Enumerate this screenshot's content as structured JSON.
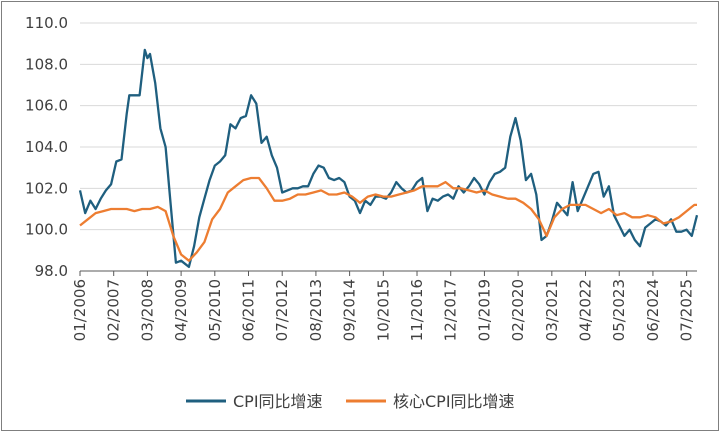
{
  "chart_data": {
    "type": "line",
    "ylim": [
      98.0,
      110.0
    ],
    "yticks": [
      98.0,
      100.0,
      102.0,
      104.0,
      106.0,
      108.0,
      110.0
    ],
    "ytick_labels": [
      "98.0",
      "100.0",
      "102.0",
      "104.0",
      "106.0",
      "108.0",
      "110.0"
    ],
    "xlim": [
      "2006-01",
      "2025-11"
    ],
    "xtick_labels": [
      "01/2006",
      "02/2007",
      "03/2008",
      "04/2009",
      "05/2010",
      "06/2011",
      "07/2012",
      "08/2013",
      "09/2014",
      "10/2015",
      "11/2016",
      "12/2017",
      "01/2019",
      "02/2020",
      "03/2021",
      "04/2022",
      "05/2023",
      "06/2024",
      "07/2025"
    ],
    "xtick_dates": [
      "2006-01",
      "2007-02",
      "2008-03",
      "2009-04",
      "2010-05",
      "2011-06",
      "2012-07",
      "2013-08",
      "2014-09",
      "2015-10",
      "2016-11",
      "2017-12",
      "2019-01",
      "2020-02",
      "2021-03",
      "2022-04",
      "2023-05",
      "2024-06",
      "2025-07"
    ],
    "grid": "horizontal",
    "legend_position": "bottom",
    "series": [
      {
        "name": "CPI同比增速",
        "color": "#1f5f7f",
        "points": [
          [
            "2006-01",
            101.9
          ],
          [
            "2006-03",
            100.8
          ],
          [
            "2006-05",
            101.4
          ],
          [
            "2006-07",
            101.0
          ],
          [
            "2006-09",
            101.5
          ],
          [
            "2006-11",
            101.9
          ],
          [
            "2007-01",
            102.2
          ],
          [
            "2007-03",
            103.3
          ],
          [
            "2007-05",
            103.4
          ],
          [
            "2007-07",
            105.6
          ],
          [
            "2007-08",
            106.5
          ],
          [
            "2007-10",
            106.5
          ],
          [
            "2007-12",
            106.5
          ],
          [
            "2008-02",
            108.7
          ],
          [
            "2008-03",
            108.3
          ],
          [
            "2008-04",
            108.5
          ],
          [
            "2008-06",
            107.1
          ],
          [
            "2008-08",
            104.9
          ],
          [
            "2008-10",
            104.0
          ],
          [
            "2008-12",
            101.2
          ],
          [
            "2009-02",
            98.4
          ],
          [
            "2009-04",
            98.5
          ],
          [
            "2009-06",
            98.3
          ],
          [
            "2009-07",
            98.2
          ],
          [
            "2009-09",
            99.2
          ],
          [
            "2009-11",
            100.6
          ],
          [
            "2010-01",
            101.5
          ],
          [
            "2010-03",
            102.4
          ],
          [
            "2010-05",
            103.1
          ],
          [
            "2010-07",
            103.3
          ],
          [
            "2010-09",
            103.6
          ],
          [
            "2010-11",
            105.1
          ],
          [
            "2011-01",
            104.9
          ],
          [
            "2011-03",
            105.4
          ],
          [
            "2011-05",
            105.5
          ],
          [
            "2011-07",
            106.5
          ],
          [
            "2011-09",
            106.1
          ],
          [
            "2011-11",
            104.2
          ],
          [
            "2012-01",
            104.5
          ],
          [
            "2012-03",
            103.6
          ],
          [
            "2012-05",
            103.0
          ],
          [
            "2012-07",
            101.8
          ],
          [
            "2012-09",
            101.9
          ],
          [
            "2012-11",
            102.0
          ],
          [
            "2013-01",
            102.0
          ],
          [
            "2013-03",
            102.1
          ],
          [
            "2013-05",
            102.1
          ],
          [
            "2013-07",
            102.7
          ],
          [
            "2013-09",
            103.1
          ],
          [
            "2013-11",
            103.0
          ],
          [
            "2014-01",
            102.5
          ],
          [
            "2014-03",
            102.4
          ],
          [
            "2014-05",
            102.5
          ],
          [
            "2014-07",
            102.3
          ],
          [
            "2014-09",
            101.6
          ],
          [
            "2014-11",
            101.4
          ],
          [
            "2015-01",
            100.8
          ],
          [
            "2015-03",
            101.4
          ],
          [
            "2015-05",
            101.2
          ],
          [
            "2015-07",
            101.6
          ],
          [
            "2015-09",
            101.6
          ],
          [
            "2015-11",
            101.5
          ],
          [
            "2016-01",
            101.8
          ],
          [
            "2016-03",
            102.3
          ],
          [
            "2016-05",
            102.0
          ],
          [
            "2016-07",
            101.8
          ],
          [
            "2016-09",
            101.9
          ],
          [
            "2016-11",
            102.3
          ],
          [
            "2017-01",
            102.5
          ],
          [
            "2017-03",
            100.9
          ],
          [
            "2017-05",
            101.5
          ],
          [
            "2017-07",
            101.4
          ],
          [
            "2017-09",
            101.6
          ],
          [
            "2017-11",
            101.7
          ],
          [
            "2018-01",
            101.5
          ],
          [
            "2018-03",
            102.1
          ],
          [
            "2018-05",
            101.8
          ],
          [
            "2018-07",
            102.1
          ],
          [
            "2018-09",
            102.5
          ],
          [
            "2018-11",
            102.2
          ],
          [
            "2019-01",
            101.7
          ],
          [
            "2019-03",
            102.3
          ],
          [
            "2019-05",
            102.7
          ],
          [
            "2019-07",
            102.8
          ],
          [
            "2019-09",
            103.0
          ],
          [
            "2019-11",
            104.5
          ],
          [
            "2020-01",
            105.4
          ],
          [
            "2020-03",
            104.3
          ],
          [
            "2020-05",
            102.4
          ],
          [
            "2020-07",
            102.7
          ],
          [
            "2020-09",
            101.7
          ],
          [
            "2020-11",
            99.5
          ],
          [
            "2021-01",
            99.7
          ],
          [
            "2021-03",
            100.4
          ],
          [
            "2021-05",
            101.3
          ],
          [
            "2021-07",
            101.0
          ],
          [
            "2021-09",
            100.7
          ],
          [
            "2021-11",
            102.3
          ],
          [
            "2022-01",
            100.9
          ],
          [
            "2022-03",
            101.5
          ],
          [
            "2022-05",
            102.1
          ],
          [
            "2022-07",
            102.7
          ],
          [
            "2022-09",
            102.8
          ],
          [
            "2022-11",
            101.6
          ],
          [
            "2023-01",
            102.1
          ],
          [
            "2023-03",
            100.7
          ],
          [
            "2023-05",
            100.2
          ],
          [
            "2023-07",
            99.7
          ],
          [
            "2023-09",
            100.0
          ],
          [
            "2023-11",
            99.5
          ],
          [
            "2024-01",
            99.2
          ],
          [
            "2024-03",
            100.1
          ],
          [
            "2024-05",
            100.3
          ],
          [
            "2024-07",
            100.5
          ],
          [
            "2024-09",
            100.4
          ],
          [
            "2024-11",
            100.2
          ],
          [
            "2025-01",
            100.5
          ],
          [
            "2025-03",
            99.9
          ],
          [
            "2025-05",
            99.9
          ],
          [
            "2025-07",
            100.0
          ],
          [
            "2025-09",
            99.7
          ],
          [
            "2025-10",
            100.2
          ],
          [
            "2025-11",
            100.7
          ]
        ]
      },
      {
        "name": "核心CPI同比增速",
        "color": "#ed7d31",
        "points": [
          [
            "2006-01",
            100.2
          ],
          [
            "2006-04",
            100.5
          ],
          [
            "2006-07",
            100.8
          ],
          [
            "2006-10",
            100.9
          ],
          [
            "2007-01",
            101.0
          ],
          [
            "2007-04",
            101.0
          ],
          [
            "2007-07",
            101.0
          ],
          [
            "2007-10",
            100.9
          ],
          [
            "2008-01",
            101.0
          ],
          [
            "2008-04",
            101.0
          ],
          [
            "2008-07",
            101.1
          ],
          [
            "2008-10",
            100.9
          ],
          [
            "2009-01",
            99.7
          ],
          [
            "2009-04",
            98.8
          ],
          [
            "2009-07",
            98.5
          ],
          [
            "2009-10",
            98.9
          ],
          [
            "2010-01",
            99.4
          ],
          [
            "2010-04",
            100.5
          ],
          [
            "2010-07",
            101.0
          ],
          [
            "2010-10",
            101.8
          ],
          [
            "2011-01",
            102.1
          ],
          [
            "2011-04",
            102.4
          ],
          [
            "2011-07",
            102.5
          ],
          [
            "2011-10",
            102.5
          ],
          [
            "2012-01",
            102.0
          ],
          [
            "2012-04",
            101.4
          ],
          [
            "2012-07",
            101.4
          ],
          [
            "2012-10",
            101.5
          ],
          [
            "2013-01",
            101.7
          ],
          [
            "2013-04",
            101.7
          ],
          [
            "2013-07",
            101.8
          ],
          [
            "2013-10",
            101.9
          ],
          [
            "2014-01",
            101.7
          ],
          [
            "2014-04",
            101.7
          ],
          [
            "2014-07",
            101.8
          ],
          [
            "2014-10",
            101.6
          ],
          [
            "2015-01",
            101.3
          ],
          [
            "2015-04",
            101.6
          ],
          [
            "2015-07",
            101.7
          ],
          [
            "2015-10",
            101.6
          ],
          [
            "2016-01",
            101.6
          ],
          [
            "2016-04",
            101.7
          ],
          [
            "2016-07",
            101.8
          ],
          [
            "2016-10",
            101.9
          ],
          [
            "2017-01",
            102.1
          ],
          [
            "2017-04",
            102.1
          ],
          [
            "2017-07",
            102.1
          ],
          [
            "2017-10",
            102.3
          ],
          [
            "2018-01",
            102.0
          ],
          [
            "2018-04",
            102.0
          ],
          [
            "2018-07",
            101.9
          ],
          [
            "2018-10",
            101.8
          ],
          [
            "2019-01",
            101.9
          ],
          [
            "2019-04",
            101.7
          ],
          [
            "2019-07",
            101.6
          ],
          [
            "2019-10",
            101.5
          ],
          [
            "2020-01",
            101.5
          ],
          [
            "2020-04",
            101.3
          ],
          [
            "2020-07",
            101.0
          ],
          [
            "2020-10",
            100.5
          ],
          [
            "2021-01",
            99.7
          ],
          [
            "2021-04",
            100.6
          ],
          [
            "2021-07",
            101.0
          ],
          [
            "2021-10",
            101.2
          ],
          [
            "2022-01",
            101.2
          ],
          [
            "2022-04",
            101.2
          ],
          [
            "2022-07",
            101.0
          ],
          [
            "2022-10",
            100.8
          ],
          [
            "2023-01",
            101.0
          ],
          [
            "2023-04",
            100.7
          ],
          [
            "2023-07",
            100.8
          ],
          [
            "2023-10",
            100.6
          ],
          [
            "2024-01",
            100.6
          ],
          [
            "2024-04",
            100.7
          ],
          [
            "2024-07",
            100.6
          ],
          [
            "2024-10",
            100.3
          ],
          [
            "2025-01",
            100.4
          ],
          [
            "2025-04",
            100.6
          ],
          [
            "2025-07",
            100.9
          ],
          [
            "2025-09",
            101.1
          ],
          [
            "2025-10",
            101.2
          ],
          [
            "2025-11",
            101.2
          ]
        ]
      }
    ]
  }
}
